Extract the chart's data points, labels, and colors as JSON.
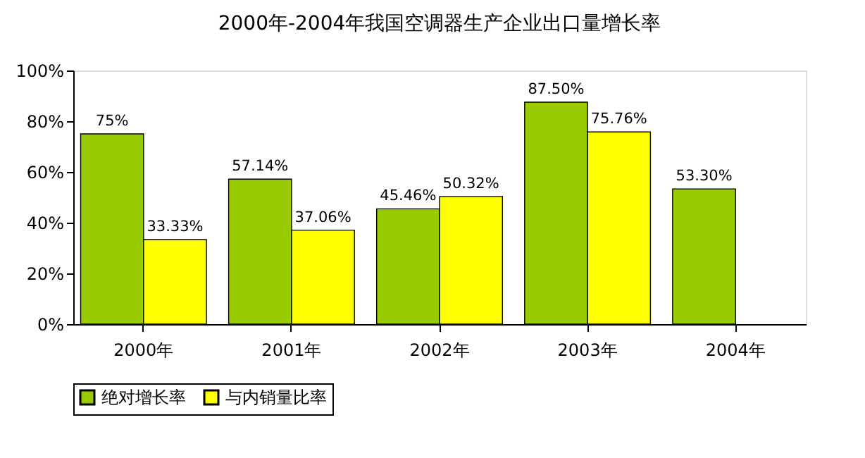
{
  "chart_data": {
    "type": "bar",
    "title": "2000年-2004年我国空调器生产企业出口量增长率",
    "categories": [
      "2000年",
      "2001年",
      "2002年",
      "2003年",
      "2004年"
    ],
    "series": [
      {
        "name": "绝对增长率",
        "color": "#99cc00",
        "values": [
          75,
          57.14,
          45.46,
          87.5,
          53.3
        ],
        "value_labels": [
          "75%",
          "57.14%",
          "45.46%",
          "87.50%",
          "53.30%"
        ]
      },
      {
        "name": "与内销量比率",
        "color": "#ffff00",
        "values": [
          33.33,
          37.06,
          50.32,
          75.76,
          null
        ],
        "value_labels": [
          "33.33%",
          "37.06%",
          "50.32%",
          "75.76%",
          null
        ]
      }
    ],
    "ylim": [
      0,
      100
    ],
    "yticks": [
      {
        "value": 0,
        "label": "0%"
      },
      {
        "value": 20,
        "label": "20%"
      },
      {
        "value": 40,
        "label": "40%"
      },
      {
        "value": 60,
        "label": "60%"
      },
      {
        "value": 80,
        "label": "80%"
      },
      {
        "value": 100,
        "label": "100%"
      }
    ],
    "grid": false,
    "legend": "bottom"
  }
}
